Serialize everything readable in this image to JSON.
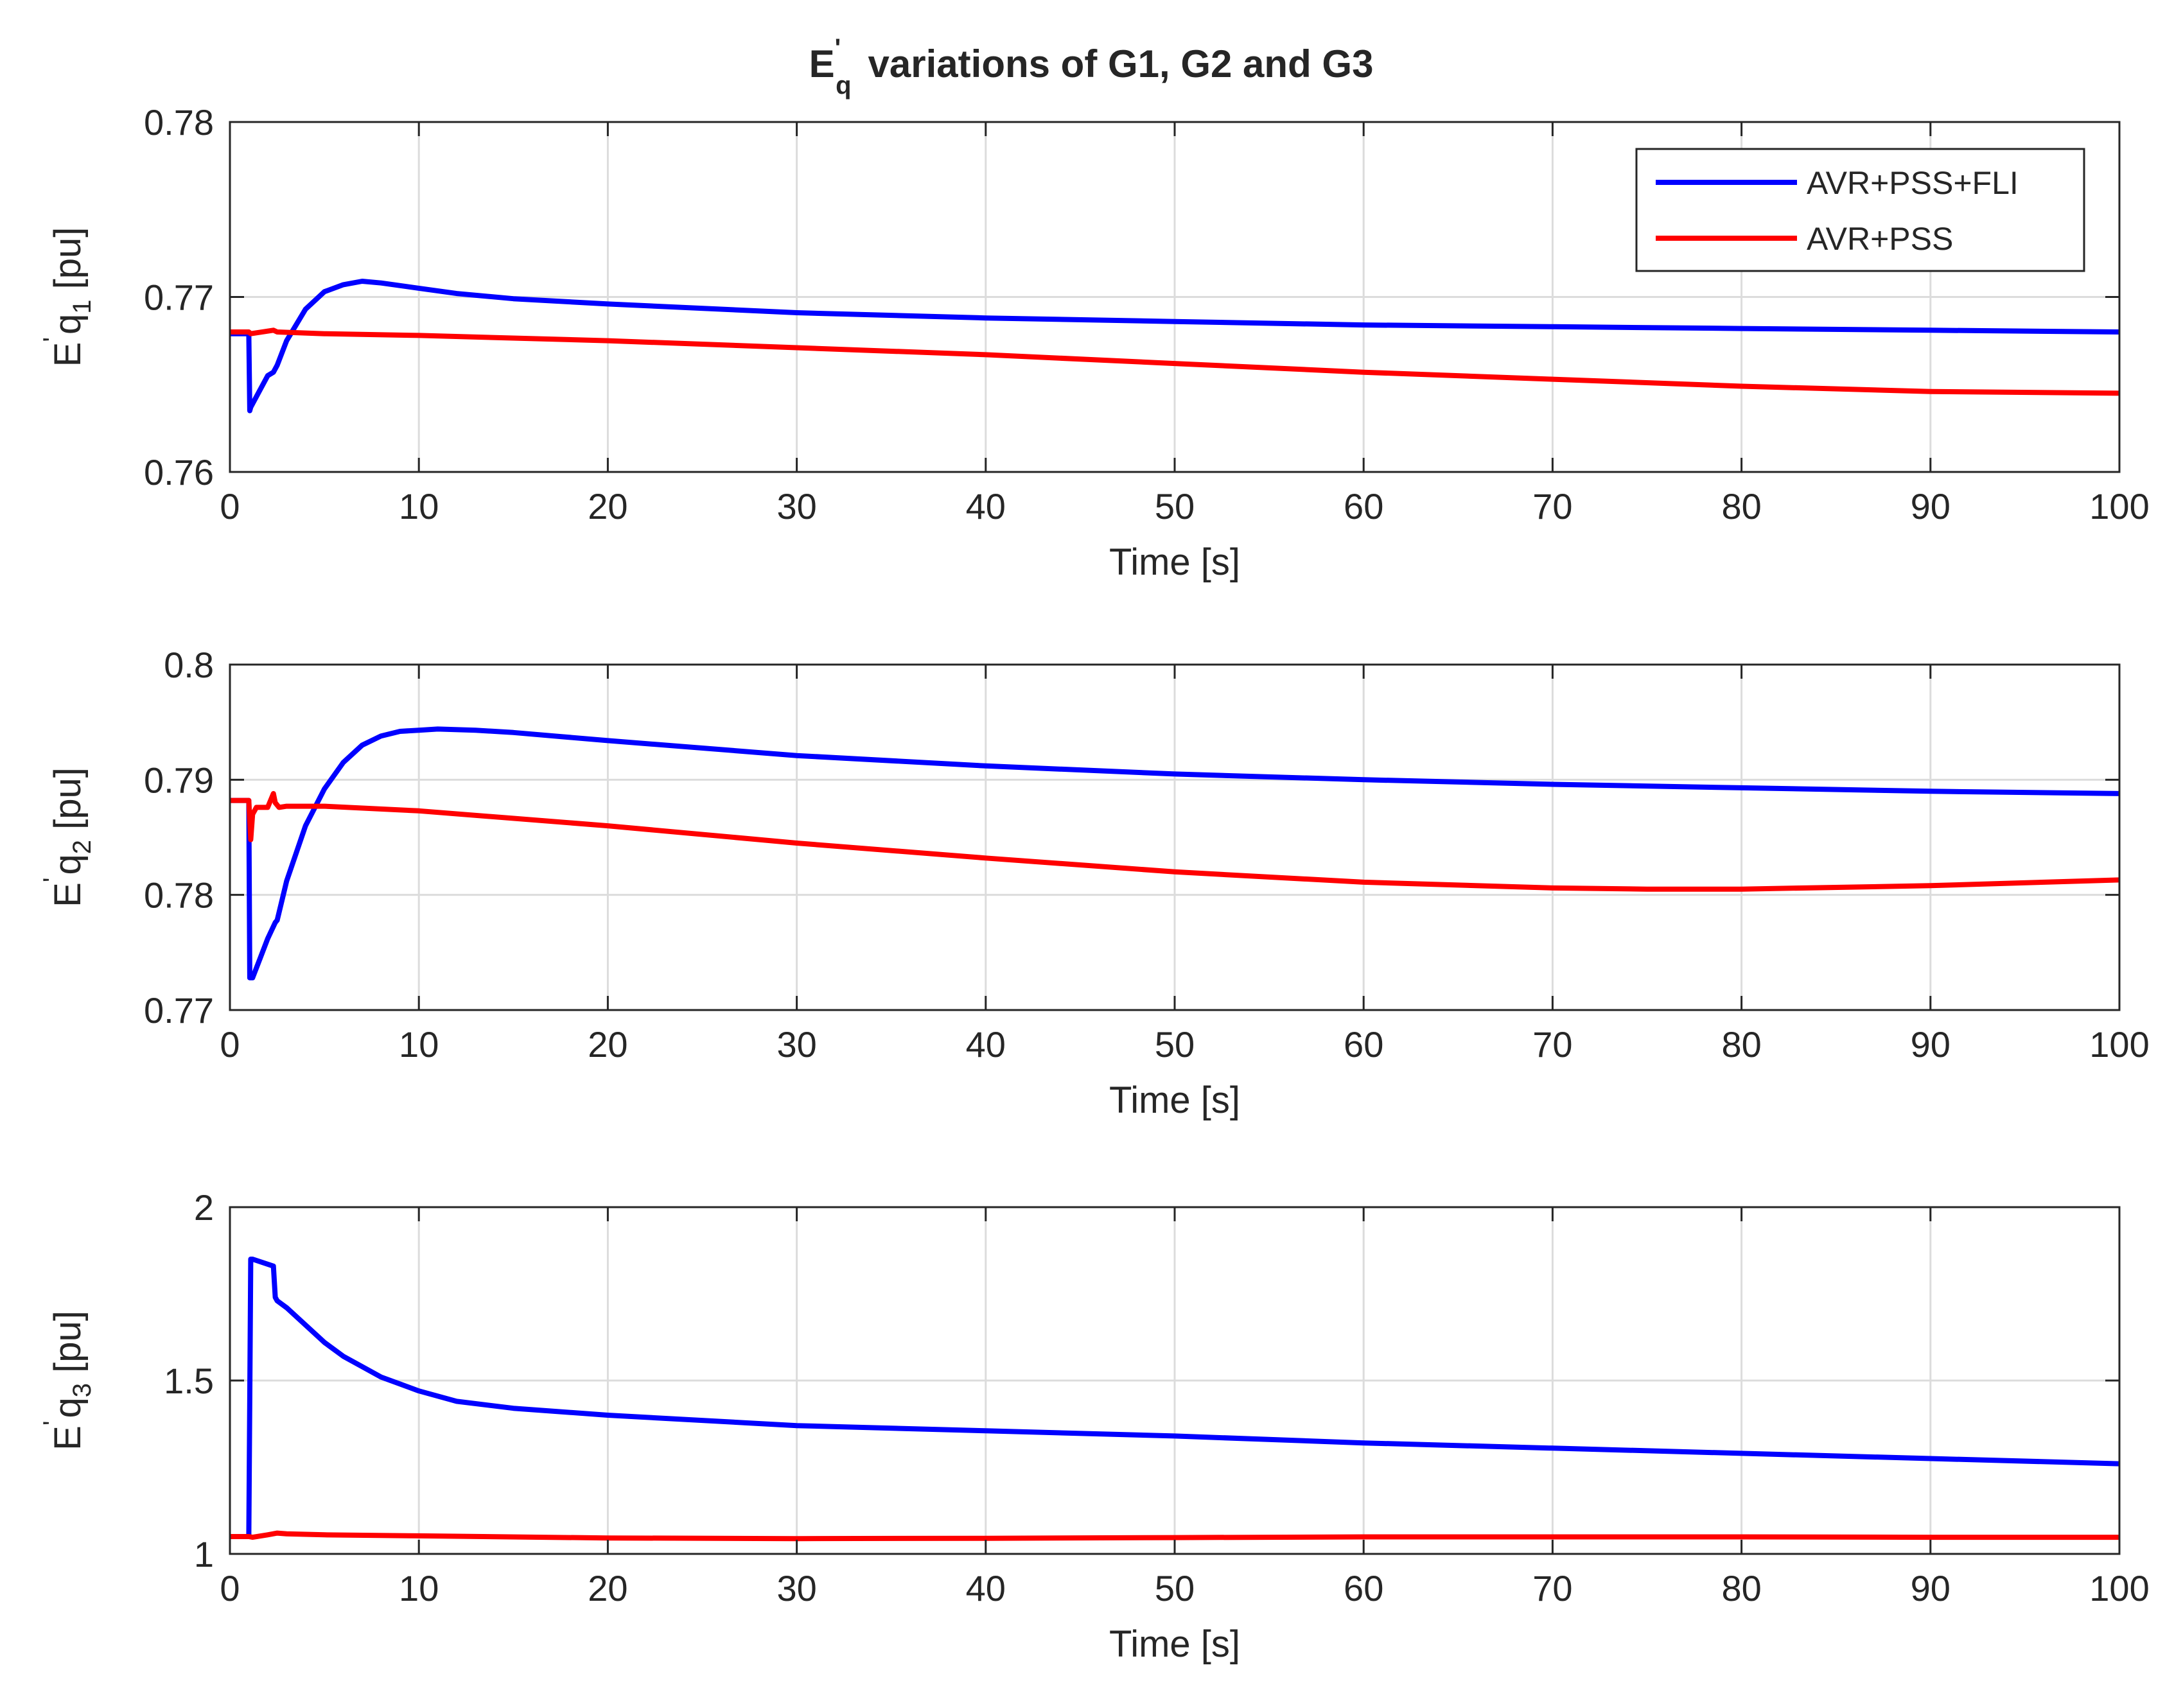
{
  "chart_data": {
    "title": {
      "main": "E",
      "sup": "'",
      "sub": "q",
      "rest": "variations of G1, G2 and G3"
    },
    "type": "line",
    "colors": {
      "blue": "#0000ff",
      "red": "#ff0000",
      "grid": "#dcdcdc",
      "axis": "#262626"
    },
    "legend": {
      "placement": "top-right (subplot 1)",
      "entries": [
        {
          "name": "AVR+PSS+FLI",
          "color": "#0000ff"
        },
        {
          "name": "AVR+PSS",
          "color": "#ff0000"
        }
      ]
    },
    "subplots": [
      {
        "ylabel": {
          "pre": "E",
          "sup": "'",
          "mid": "q",
          "sub": "1",
          "post": "[pu]"
        },
        "xlabel": "Time [s]",
        "xlim": [
          0,
          100
        ],
        "ylim": [
          0.76,
          0.78
        ],
        "xticks": [
          0,
          10,
          20,
          30,
          40,
          50,
          60,
          70,
          80,
          90,
          100
        ],
        "xtick_labels": [
          "0",
          "10",
          "20",
          "30",
          "40",
          "50",
          "60",
          "70",
          "80",
          "90",
          "100"
        ],
        "yticks": [
          0.76,
          0.77,
          0.78
        ],
        "ytick_labels": [
          "0.76",
          "0.77",
          "0.78"
        ],
        "grid": true,
        "series": [
          {
            "name": "AVR+PSS+FLI",
            "color": "#0000ff",
            "x": [
              0,
              1.0,
              1.05,
              1.1,
              1.5,
              2.0,
              2.3,
              2.5,
              3,
              4,
              5,
              6,
              7,
              8,
              10,
              12,
              15,
              20,
              30,
              40,
              50,
              60,
              70,
              80,
              90,
              100
            ],
            "y": [
              0.7679,
              0.7679,
              0.7635,
              0.7637,
              0.7645,
              0.7655,
              0.7657,
              0.7661,
              0.7675,
              0.7693,
              0.7703,
              0.7707,
              0.7709,
              0.7708,
              0.7705,
              0.7702,
              0.7699,
              0.7696,
              0.7691,
              0.7688,
              0.7686,
              0.7684,
              0.7683,
              0.7682,
              0.7681,
              0.768
            ]
          },
          {
            "name": "AVR+PSS",
            "color": "#ff0000",
            "x": [
              0,
              1.0,
              1.1,
              2.3,
              2.5,
              5,
              10,
              20,
              30,
              40,
              50,
              60,
              70,
              80,
              90,
              100
            ],
            "y": [
              0.768,
              0.768,
              0.7679,
              0.7681,
              0.768,
              0.7679,
              0.7678,
              0.7675,
              0.7671,
              0.7667,
              0.7662,
              0.7657,
              0.7653,
              0.7649,
              0.7646,
              0.7645
            ]
          }
        ]
      },
      {
        "ylabel": {
          "pre": "E",
          "sup": "'",
          "mid": "q",
          "sub": "2",
          "post": "[pu]"
        },
        "xlabel": "Time [s]",
        "xlim": [
          0,
          100
        ],
        "ylim": [
          0.77,
          0.8
        ],
        "xticks": [
          0,
          10,
          20,
          30,
          40,
          50,
          60,
          70,
          80,
          90,
          100
        ],
        "xtick_labels": [
          "0",
          "10",
          "20",
          "30",
          "40",
          "50",
          "60",
          "70",
          "80",
          "90",
          "100"
        ],
        "yticks": [
          0.77,
          0.78,
          0.79,
          0.8
        ],
        "ytick_labels": [
          "0.77",
          "0.78",
          "0.79",
          "0.8"
        ],
        "grid": true,
        "series": [
          {
            "name": "AVR+PSS+FLI",
            "color": "#0000ff",
            "x": [
              0,
              1.0,
              1.05,
              1.2,
              1.6,
              2.0,
              2.4,
              2.5,
              3,
              4,
              5,
              6,
              7,
              8,
              9,
              10,
              11,
              13,
              15,
              20,
              30,
              40,
              50,
              60,
              70,
              80,
              90,
              100
            ],
            "y": [
              0.7882,
              0.7882,
              0.7728,
              0.7728,
              0.7745,
              0.7762,
              0.7776,
              0.7778,
              0.7812,
              0.786,
              0.7892,
              0.7915,
              0.793,
              0.7938,
              0.7942,
              0.7943,
              0.7944,
              0.7943,
              0.7941,
              0.7934,
              0.7921,
              0.7912,
              0.7905,
              0.79,
              0.7896,
              0.7893,
              0.789,
              0.7888
            ]
          },
          {
            "name": "AVR+PSS",
            "color": "#ff0000",
            "x": [
              0,
              1.0,
              1.1,
              1.2,
              1.4,
              2.0,
              2.3,
              2.4,
              2.6,
              3,
              5,
              10,
              20,
              30,
              40,
              50,
              60,
              70,
              75,
              80,
              90,
              100
            ],
            "y": [
              0.7882,
              0.7882,
              0.7848,
              0.787,
              0.7876,
              0.7876,
              0.7888,
              0.788,
              0.7876,
              0.7877,
              0.7877,
              0.7873,
              0.786,
              0.7845,
              0.7832,
              0.782,
              0.7811,
              0.7806,
              0.7805,
              0.7805,
              0.7808,
              0.7813
            ]
          }
        ]
      },
      {
        "ylabel": {
          "pre": "E",
          "sup": "'",
          "mid": "q",
          "sub": "3",
          "post": "[pu]"
        },
        "xlabel": "Time [s]",
        "xlim": [
          0,
          100
        ],
        "ylim": [
          1,
          2
        ],
        "xticks": [
          0,
          10,
          20,
          30,
          40,
          50,
          60,
          70,
          80,
          90,
          100
        ],
        "xtick_labels": [
          "0",
          "10",
          "20",
          "30",
          "40",
          "50",
          "60",
          "70",
          "80",
          "90",
          "100"
        ],
        "yticks": [
          1,
          1.5,
          2
        ],
        "ytick_labels": [
          "1",
          "1.5",
          "2"
        ],
        "grid": true,
        "series": [
          {
            "name": "AVR+PSS+FLI",
            "color": "#0000ff",
            "x": [
              0,
              1.0,
              1.1,
              1.2,
              2.3,
              2.4,
              2.5,
              3,
              4,
              5,
              6,
              7,
              8,
              9,
              10,
              12,
              15,
              20,
              30,
              40,
              50,
              60,
              70,
              80,
              90,
              100
            ],
            "y": [
              1.05,
              1.05,
              1.85,
              1.85,
              1.83,
              1.74,
              1.73,
              1.71,
              1.66,
              1.61,
              1.57,
              1.54,
              1.51,
              1.49,
              1.47,
              1.44,
              1.42,
              1.4,
              1.37,
              1.355,
              1.34,
              1.32,
              1.305,
              1.29,
              1.275,
              1.26
            ]
          },
          {
            "name": "AVR+PSS",
            "color": "#ff0000",
            "x": [
              0,
              1.0,
              1.2,
              2.0,
              2.5,
              3,
              5,
              10,
              20,
              30,
              40,
              50,
              60,
              70,
              80,
              90,
              100
            ],
            "y": [
              1.05,
              1.05,
              1.048,
              1.055,
              1.06,
              1.058,
              1.055,
              1.052,
              1.046,
              1.044,
              1.045,
              1.047,
              1.049,
              1.049,
              1.049,
              1.048,
              1.048
            ]
          }
        ]
      }
    ]
  }
}
